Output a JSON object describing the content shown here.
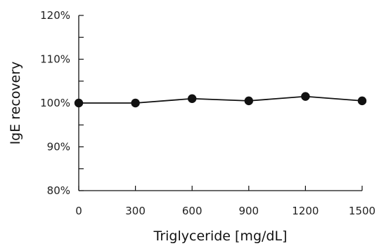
{
  "chart_data": {
    "type": "line",
    "title": "",
    "xlabel": "Triglyceride [mg/dL]",
    "ylabel": "IgE recovery",
    "x": [
      0,
      300,
      600,
      900,
      1200,
      1500
    ],
    "x_tick_labels": [
      "0",
      "300",
      "600",
      "900",
      "1200",
      "1500"
    ],
    "xlim": [
      0,
      1500
    ],
    "ylim": [
      80,
      120
    ],
    "y_ticks": [
      80,
      90,
      100,
      110,
      120
    ],
    "y_tick_labels": [
      "80%",
      "90%",
      "100%",
      "110%",
      "120%"
    ],
    "y_minor_ticks": [
      85,
      95,
      105,
      115
    ],
    "grid": false,
    "series": [
      {
        "values": [
          100.0,
          100.0,
          101.0,
          100.5,
          101.5,
          100.5
        ],
        "color": "#111111",
        "marker": "circle"
      }
    ]
  }
}
